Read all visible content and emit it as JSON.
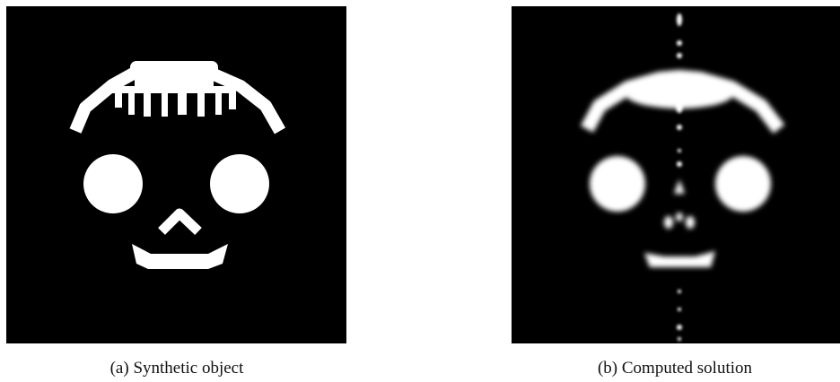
{
  "figures": [
    {
      "label": "(a)",
      "caption": "Synthetic object"
    },
    {
      "label": "(b)",
      "caption": "Computed solution"
    }
  ]
}
